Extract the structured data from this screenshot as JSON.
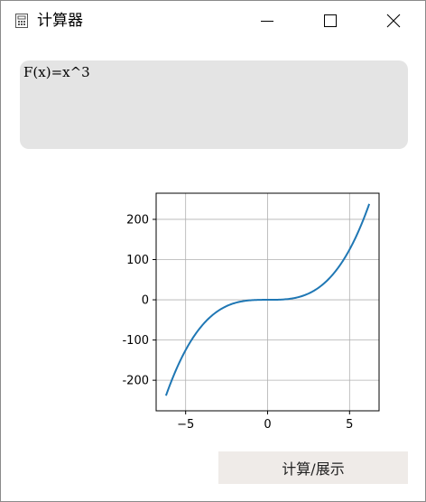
{
  "window": {
    "title": "计算器",
    "icon": "calculator-icon",
    "controls": [
      "minimize-icon",
      "maximize-icon",
      "close-icon"
    ]
  },
  "formula": {
    "value": "F(x)=x^3"
  },
  "compute_button": {
    "label": "计算/展示"
  },
  "chart_data": {
    "type": "line",
    "function": "x^3",
    "x_range": [
      -6.2,
      6.2
    ],
    "xlim": [
      -6.8,
      6.8
    ],
    "ylim": [
      -276,
      265
    ],
    "xticks": [
      -5,
      0,
      5
    ],
    "xtick_labels": [
      "−5",
      "0",
      "5"
    ],
    "yticks": [
      -200,
      -100,
      0,
      100,
      200
    ],
    "ytick_labels": [
      "-200",
      "-100",
      "0",
      "100",
      "200"
    ],
    "grid": true,
    "line_color": "#1f77b4",
    "samples": [
      {
        "x": -6.2,
        "y": -238.3
      },
      {
        "x": -5,
        "y": -125
      },
      {
        "x": -4,
        "y": -64
      },
      {
        "x": -3,
        "y": -27
      },
      {
        "x": -2,
        "y": -8
      },
      {
        "x": -1,
        "y": -1
      },
      {
        "x": 0,
        "y": 0
      },
      {
        "x": 1,
        "y": 1
      },
      {
        "x": 2,
        "y": 8
      },
      {
        "x": 3,
        "y": 27
      },
      {
        "x": 4,
        "y": 64
      },
      {
        "x": 5,
        "y": 125
      },
      {
        "x": 6.2,
        "y": 238.3
      }
    ],
    "title": "",
    "xlabel": "",
    "ylabel": ""
  }
}
